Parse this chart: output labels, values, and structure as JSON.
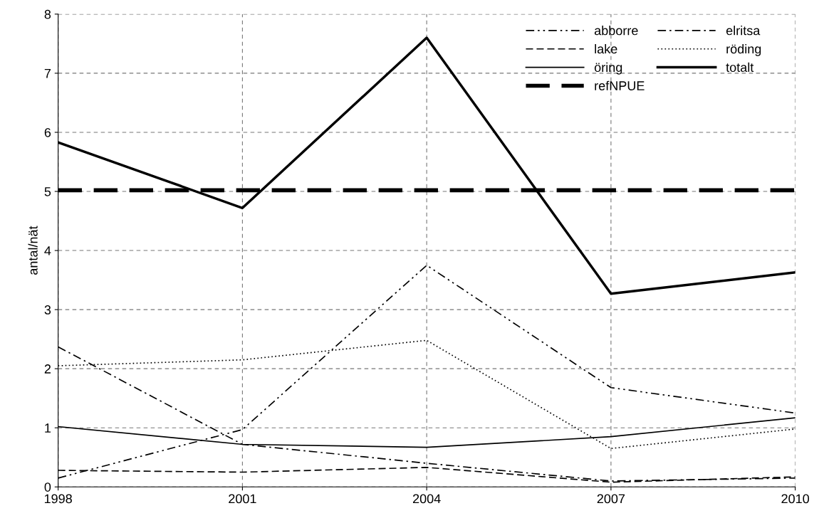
{
  "chart_data": {
    "type": "line",
    "ylabel": "antal/nät",
    "x": [
      1998,
      2001,
      2004,
      2007,
      2010
    ],
    "series": [
      {
        "name": "abborre",
        "color": "#000000",
        "line_style": "dashdotdot",
        "values": [
          0.15,
          0.97,
          3.75,
          1.68,
          1.25
        ]
      },
      {
        "name": "elritsa",
        "color": "#000000",
        "line_style": "dashdot",
        "values": [
          2.37,
          0.72,
          0.4,
          0.1,
          0.15
        ]
      },
      {
        "name": "lake",
        "color": "#000000",
        "line_style": "dashed",
        "values": [
          0.28,
          0.25,
          0.33,
          0.08,
          0.17
        ]
      },
      {
        "name": "röding",
        "color": "#000000",
        "line_style": "dotted",
        "values": [
          2.05,
          2.15,
          2.48,
          0.65,
          0.98
        ]
      },
      {
        "name": "öring",
        "color": "#000000",
        "line_style": "solid",
        "values": [
          1.02,
          0.72,
          0.67,
          0.85,
          1.17
        ]
      },
      {
        "name": "totalt",
        "color": "#000000",
        "line_style": "solid",
        "values": [
          5.83,
          4.72,
          7.6,
          3.27,
          3.63
        ]
      },
      {
        "name": "refNPUE",
        "color": "#000000",
        "line_style": "dashed",
        "values": [
          5.02,
          5.02,
          5.02,
          5.02,
          5.02
        ]
      }
    ],
    "xlim": [
      1998,
      2010
    ],
    "xticks": [
      1998,
      2001,
      2004,
      2007,
      2010
    ],
    "ylim": [
      0,
      8
    ],
    "yticks": [
      0,
      1,
      2,
      3,
      4,
      5,
      6,
      7,
      8
    ],
    "grid": true,
    "legend": "top right",
    "marker": "none"
  }
}
